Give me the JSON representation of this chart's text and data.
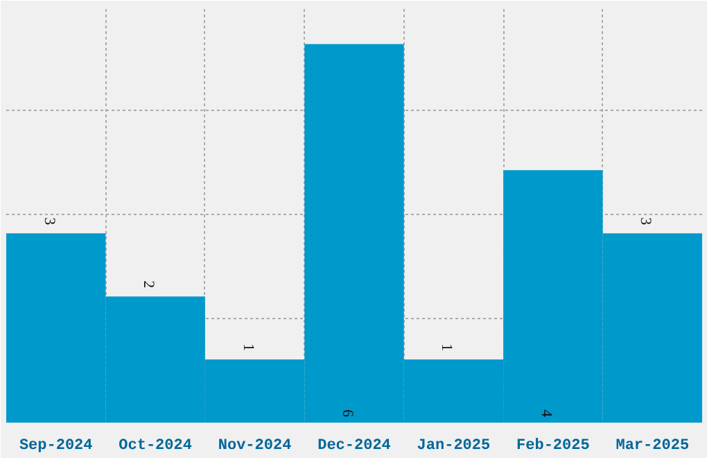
{
  "chart_data": {
    "type": "bar",
    "categories": [
      "Sep-2024",
      "Oct-2024",
      "Nov-2024",
      "Dec-2024",
      "Jan-2025",
      "Feb-2025",
      "Mar-2025"
    ],
    "values": [
      3,
      2,
      1,
      6,
      1,
      4,
      3
    ],
    "color": "#0099cc",
    "data_labels": true,
    "grid": true,
    "tick_labels": "x"
  }
}
